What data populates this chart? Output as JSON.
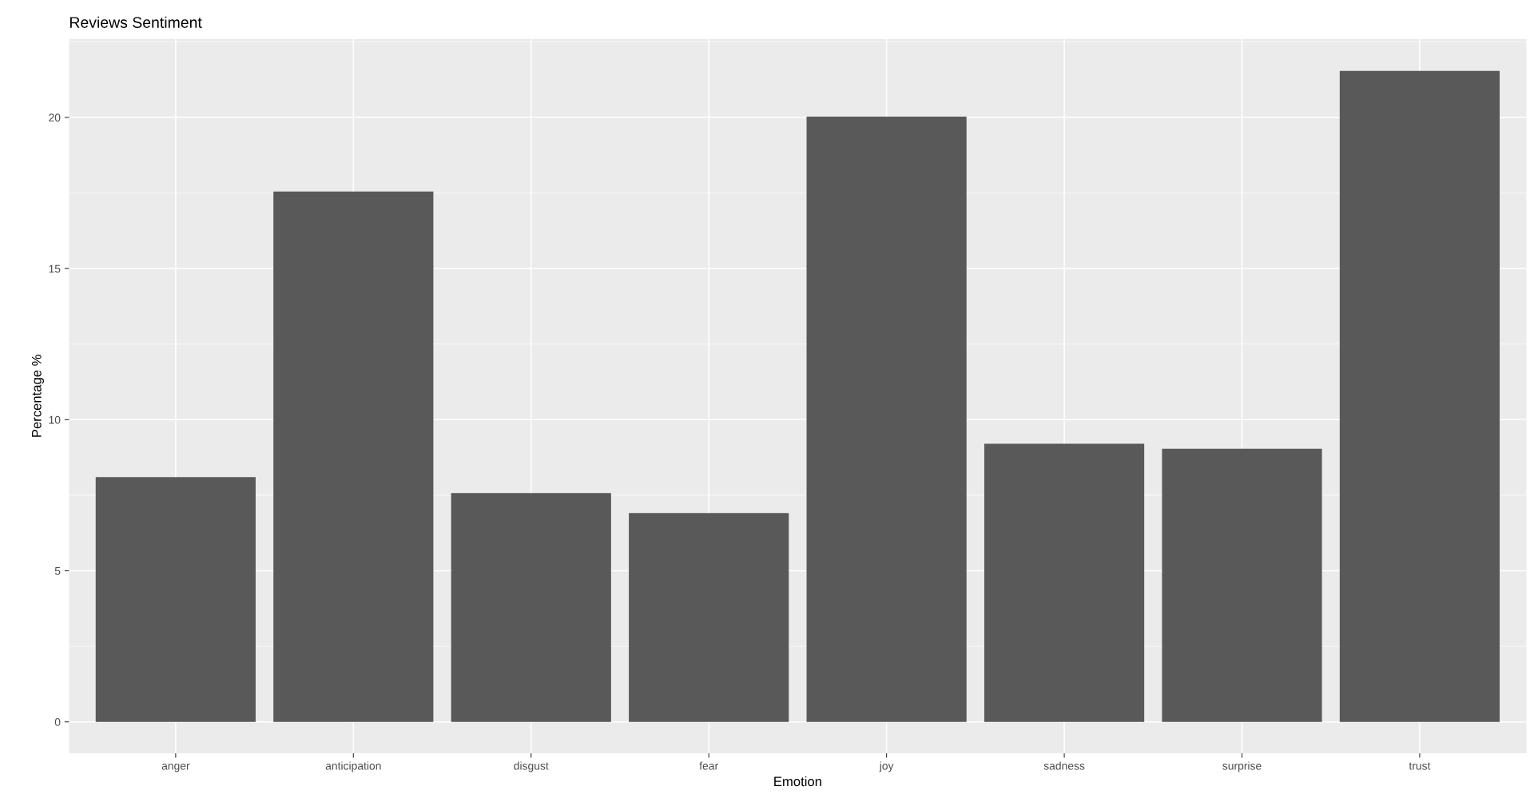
{
  "chart_data": {
    "type": "bar",
    "title": "Reviews Sentiment",
    "xlabel": "Emotion",
    "ylabel": "Percentage %",
    "categories": [
      "anger",
      "anticipation",
      "disgust",
      "fear",
      "joy",
      "sadness",
      "surprise",
      "trust"
    ],
    "values": [
      8.1,
      17.55,
      7.57,
      6.91,
      20.03,
      9.2,
      9.04,
      21.54
    ],
    "color": "#595959",
    "ylim": [
      -1.04,
      22.6
    ],
    "yticks": [
      0,
      5,
      10,
      15,
      20
    ],
    "grid": true,
    "legend": false
  }
}
